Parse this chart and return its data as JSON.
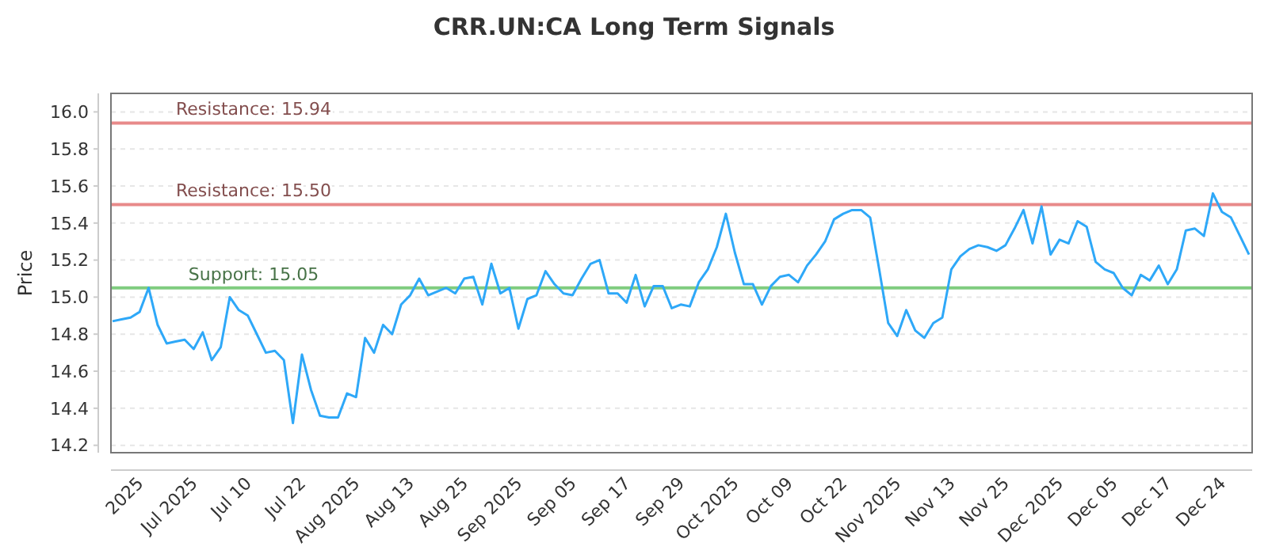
{
  "chart_data": {
    "type": "line",
    "title": "CRR.UN:CA Long Term Signals",
    "ylabel": "Price",
    "categories": [
      null,
      null,
      null,
      "2025",
      null,
      null,
      null,
      null,
      null,
      "Jul 2025",
      null,
      null,
      null,
      null,
      null,
      "Jul 10",
      null,
      null,
      null,
      null,
      null,
      "Jul 22",
      null,
      null,
      null,
      null,
      null,
      "Aug 2025",
      null,
      null,
      null,
      null,
      null,
      "Aug 13",
      null,
      null,
      null,
      null,
      null,
      "Aug 25",
      null,
      null,
      null,
      null,
      null,
      "Sep 2025",
      null,
      null,
      null,
      null,
      null,
      "Sep 05",
      null,
      null,
      null,
      null,
      null,
      "Sep 17",
      null,
      null,
      null,
      null,
      null,
      "Sep 29",
      null,
      null,
      null,
      null,
      null,
      "Oct 2025",
      null,
      null,
      null,
      null,
      null,
      "Oct 09",
      null,
      null,
      null,
      null,
      null,
      "Oct 22",
      null,
      null,
      null,
      null,
      null,
      "Nov 2025",
      null,
      null,
      null,
      null,
      null,
      "Nov 13",
      null,
      null,
      null,
      null,
      null,
      "Nov 25",
      null,
      null,
      null,
      null,
      null,
      "Dec 2025",
      null,
      null,
      null,
      null,
      null,
      "Dec 05",
      null,
      null,
      null,
      null,
      null,
      "Dec 17",
      null,
      null,
      null,
      null,
      null,
      "Dec 24",
      null,
      null,
      null
    ],
    "series": [
      {
        "color": "#2ea8f8",
        "values": [
          14.87,
          14.88,
          14.89,
          14.92,
          15.05,
          14.85,
          14.75,
          14.76,
          14.77,
          14.72,
          14.81,
          14.66,
          14.73,
          15.0,
          14.93,
          14.9,
          14.8,
          14.7,
          14.71,
          14.66,
          14.32,
          14.69,
          14.5,
          14.36,
          14.35,
          14.35,
          14.48,
          14.46,
          14.78,
          14.7,
          14.85,
          14.8,
          14.96,
          15.01,
          15.1,
          15.01,
          15.03,
          15.05,
          15.02,
          15.1,
          15.11,
          14.96,
          15.18,
          15.02,
          15.05,
          14.83,
          14.99,
          15.01,
          15.14,
          15.07,
          15.02,
          15.01,
          15.1,
          15.18,
          15.2,
          15.02,
          15.02,
          14.97,
          15.12,
          14.95,
          15.06,
          15.06,
          14.94,
          14.96,
          14.95,
          15.08,
          15.15,
          15.27,
          15.45,
          15.24,
          15.07,
          15.07,
          14.96,
          15.06,
          15.11,
          15.12,
          15.08,
          15.17,
          15.23,
          15.3,
          15.42,
          15.45,
          15.47,
          15.47,
          15.43,
          15.15,
          14.86,
          14.79,
          14.93,
          14.82,
          14.78,
          14.86,
          14.89,
          15.15,
          15.22,
          15.26,
          15.28,
          15.27,
          15.25,
          15.28,
          15.37,
          15.47,
          15.29,
          15.49,
          15.23,
          15.31,
          15.29,
          15.41,
          15.38,
          15.19,
          15.15,
          15.13,
          15.05,
          15.01,
          15.12,
          15.09,
          15.17,
          15.07,
          15.15,
          15.36,
          15.37,
          15.33,
          15.56,
          15.46,
          15.43,
          15.33,
          15.23
        ]
      }
    ],
    "ylim": [
      14.16,
      16.1
    ],
    "yticks": [
      14.2,
      14.4,
      14.6,
      14.8,
      {
        "value": 15,
        "label": "15.0"
      },
      15.2,
      15.4,
      15.6,
      15.8,
      {
        "value": 16,
        "label": "16.0"
      }
    ],
    "ref_lines": [
      {
        "axis": "y",
        "value": 15.94,
        "label": "Resistance: 15.94",
        "color": "#e88a8a"
      },
      {
        "axis": "y",
        "value": 15.5,
        "label": "Resistance: 15.50",
        "color": "#e88a8a"
      },
      {
        "axis": "y",
        "value": 15.05,
        "label": "Support: 15.05",
        "color": "#7fcc7f"
      }
    ],
    "grid": "y",
    "marker": "none",
    "line_style": "solid"
  }
}
